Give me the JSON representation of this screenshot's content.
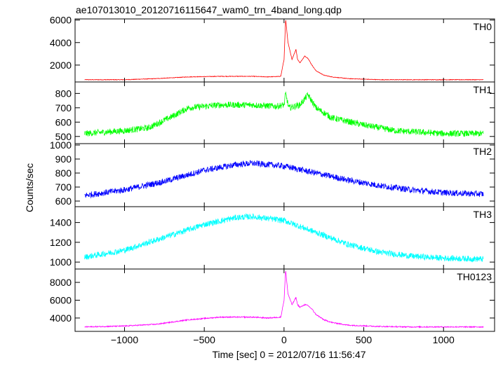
{
  "figure": {
    "title": "ae107013010_20120716115647_wam0_trn_4band_long.qdp",
    "ylabel": "Counts/sec",
    "xlabel": "Time [sec] 0 = 2012/07/16 11:56:47"
  },
  "chart_data": {
    "type": "line",
    "title": "ae107013010_20120716115647_wam0_trn_4band_long.qdp",
    "xlabel": "Time [sec] 0 = 2012/07/16 11:56:47",
    "ylabel": "Counts/sec",
    "xlim": [
      -1310,
      1320
    ],
    "x_ticks": [
      -1000,
      -500,
      0,
      500,
      1000
    ],
    "x_tick_labels": [
      "−1000",
      "−500",
      "0",
      "500",
      "1000"
    ],
    "grid": false,
    "legend": "none",
    "panels": [
      {
        "name": "TH0",
        "color": "#ff0000",
        "ylim": [
          500,
          6100
        ],
        "y_ticks": [
          2000,
          4000,
          6000
        ],
        "y_tick_labels": [
          "2000",
          "4000",
          "6000"
        ],
        "x": [
          -1250,
          -1000,
          -800,
          -600,
          -400,
          -200,
          -100,
          -20,
          0,
          10,
          25,
          50,
          75,
          85,
          100,
          130,
          150,
          175,
          200,
          250,
          300,
          400,
          600,
          800,
          1000,
          1250
        ],
        "y": [
          700,
          700,
          800,
          950,
          1000,
          1000,
          950,
          1000,
          2500,
          6100,
          4000,
          2500,
          3400,
          2500,
          2200,
          2800,
          2600,
          2000,
          1500,
          1100,
          950,
          800,
          700,
          700,
          700,
          700
        ],
        "noise": 25
      },
      {
        "name": "TH1",
        "color": "#00ff00",
        "ylim": [
          450,
          880
        ],
        "y_ticks": [
          500,
          600,
          700,
          800
        ],
        "y_tick_labels": [
          "500",
          "600",
          "700",
          "800"
        ],
        "x": [
          -1250,
          -1000,
          -850,
          -700,
          -600,
          -400,
          -200,
          -50,
          0,
          10,
          30,
          100,
          150,
          200,
          300,
          500,
          700,
          1000,
          1250
        ],
        "y": [
          520,
          540,
          560,
          640,
          700,
          720,
          720,
          710,
          720,
          800,
          700,
          720,
          790,
          700,
          630,
          580,
          540,
          520,
          520
        ],
        "noise": 22
      },
      {
        "name": "TH2",
        "color": "#0000ff",
        "ylim": [
          560,
          1010
        ],
        "y_ticks": [
          600,
          700,
          800,
          900,
          1000
        ],
        "y_tick_labels": [
          "600",
          "700",
          "800",
          "900",
          "1000"
        ],
        "x": [
          -1250,
          -1000,
          -750,
          -500,
          -300,
          -200,
          0,
          200,
          400,
          600,
          800,
          1000,
          1250
        ],
        "y": [
          640,
          680,
          740,
          820,
          860,
          870,
          850,
          800,
          750,
          710,
          680,
          660,
          650
        ],
        "noise": 22
      },
      {
        "name": "TH3",
        "color": "#00ffff",
        "ylim": [
          930,
          1560
        ],
        "y_ticks": [
          1000,
          1200,
          1400
        ],
        "y_tick_labels": [
          "1000",
          "1200",
          "1400"
        ],
        "x": [
          -1250,
          -1000,
          -750,
          -500,
          -300,
          -200,
          0,
          200,
          400,
          600,
          800,
          1000,
          1250
        ],
        "y": [
          1050,
          1120,
          1250,
          1380,
          1450,
          1460,
          1420,
          1300,
          1180,
          1100,
          1060,
          1040,
          1030
        ],
        "noise": 30
      },
      {
        "name": "TH0123",
        "color": "#ff00ff",
        "ylim": [
          2500,
          9500
        ],
        "y_ticks": [
          4000,
          6000,
          8000
        ],
        "y_tick_labels": [
          "4000",
          "6000",
          "8000"
        ],
        "x": [
          -1250,
          -1000,
          -800,
          -600,
          -400,
          -200,
          -100,
          -20,
          0,
          10,
          25,
          50,
          75,
          85,
          100,
          130,
          150,
          175,
          200,
          250,
          300,
          400,
          600,
          800,
          1000,
          1250
        ],
        "y": [
          3000,
          3100,
          3300,
          3800,
          4100,
          4100,
          4000,
          4100,
          6000,
          9400,
          6700,
          5500,
          6300,
          5500,
          5200,
          5500,
          5400,
          5000,
          4400,
          3800,
          3500,
          3200,
          3050,
          3000,
          3000,
          3000
        ],
        "noise": 60
      }
    ]
  }
}
